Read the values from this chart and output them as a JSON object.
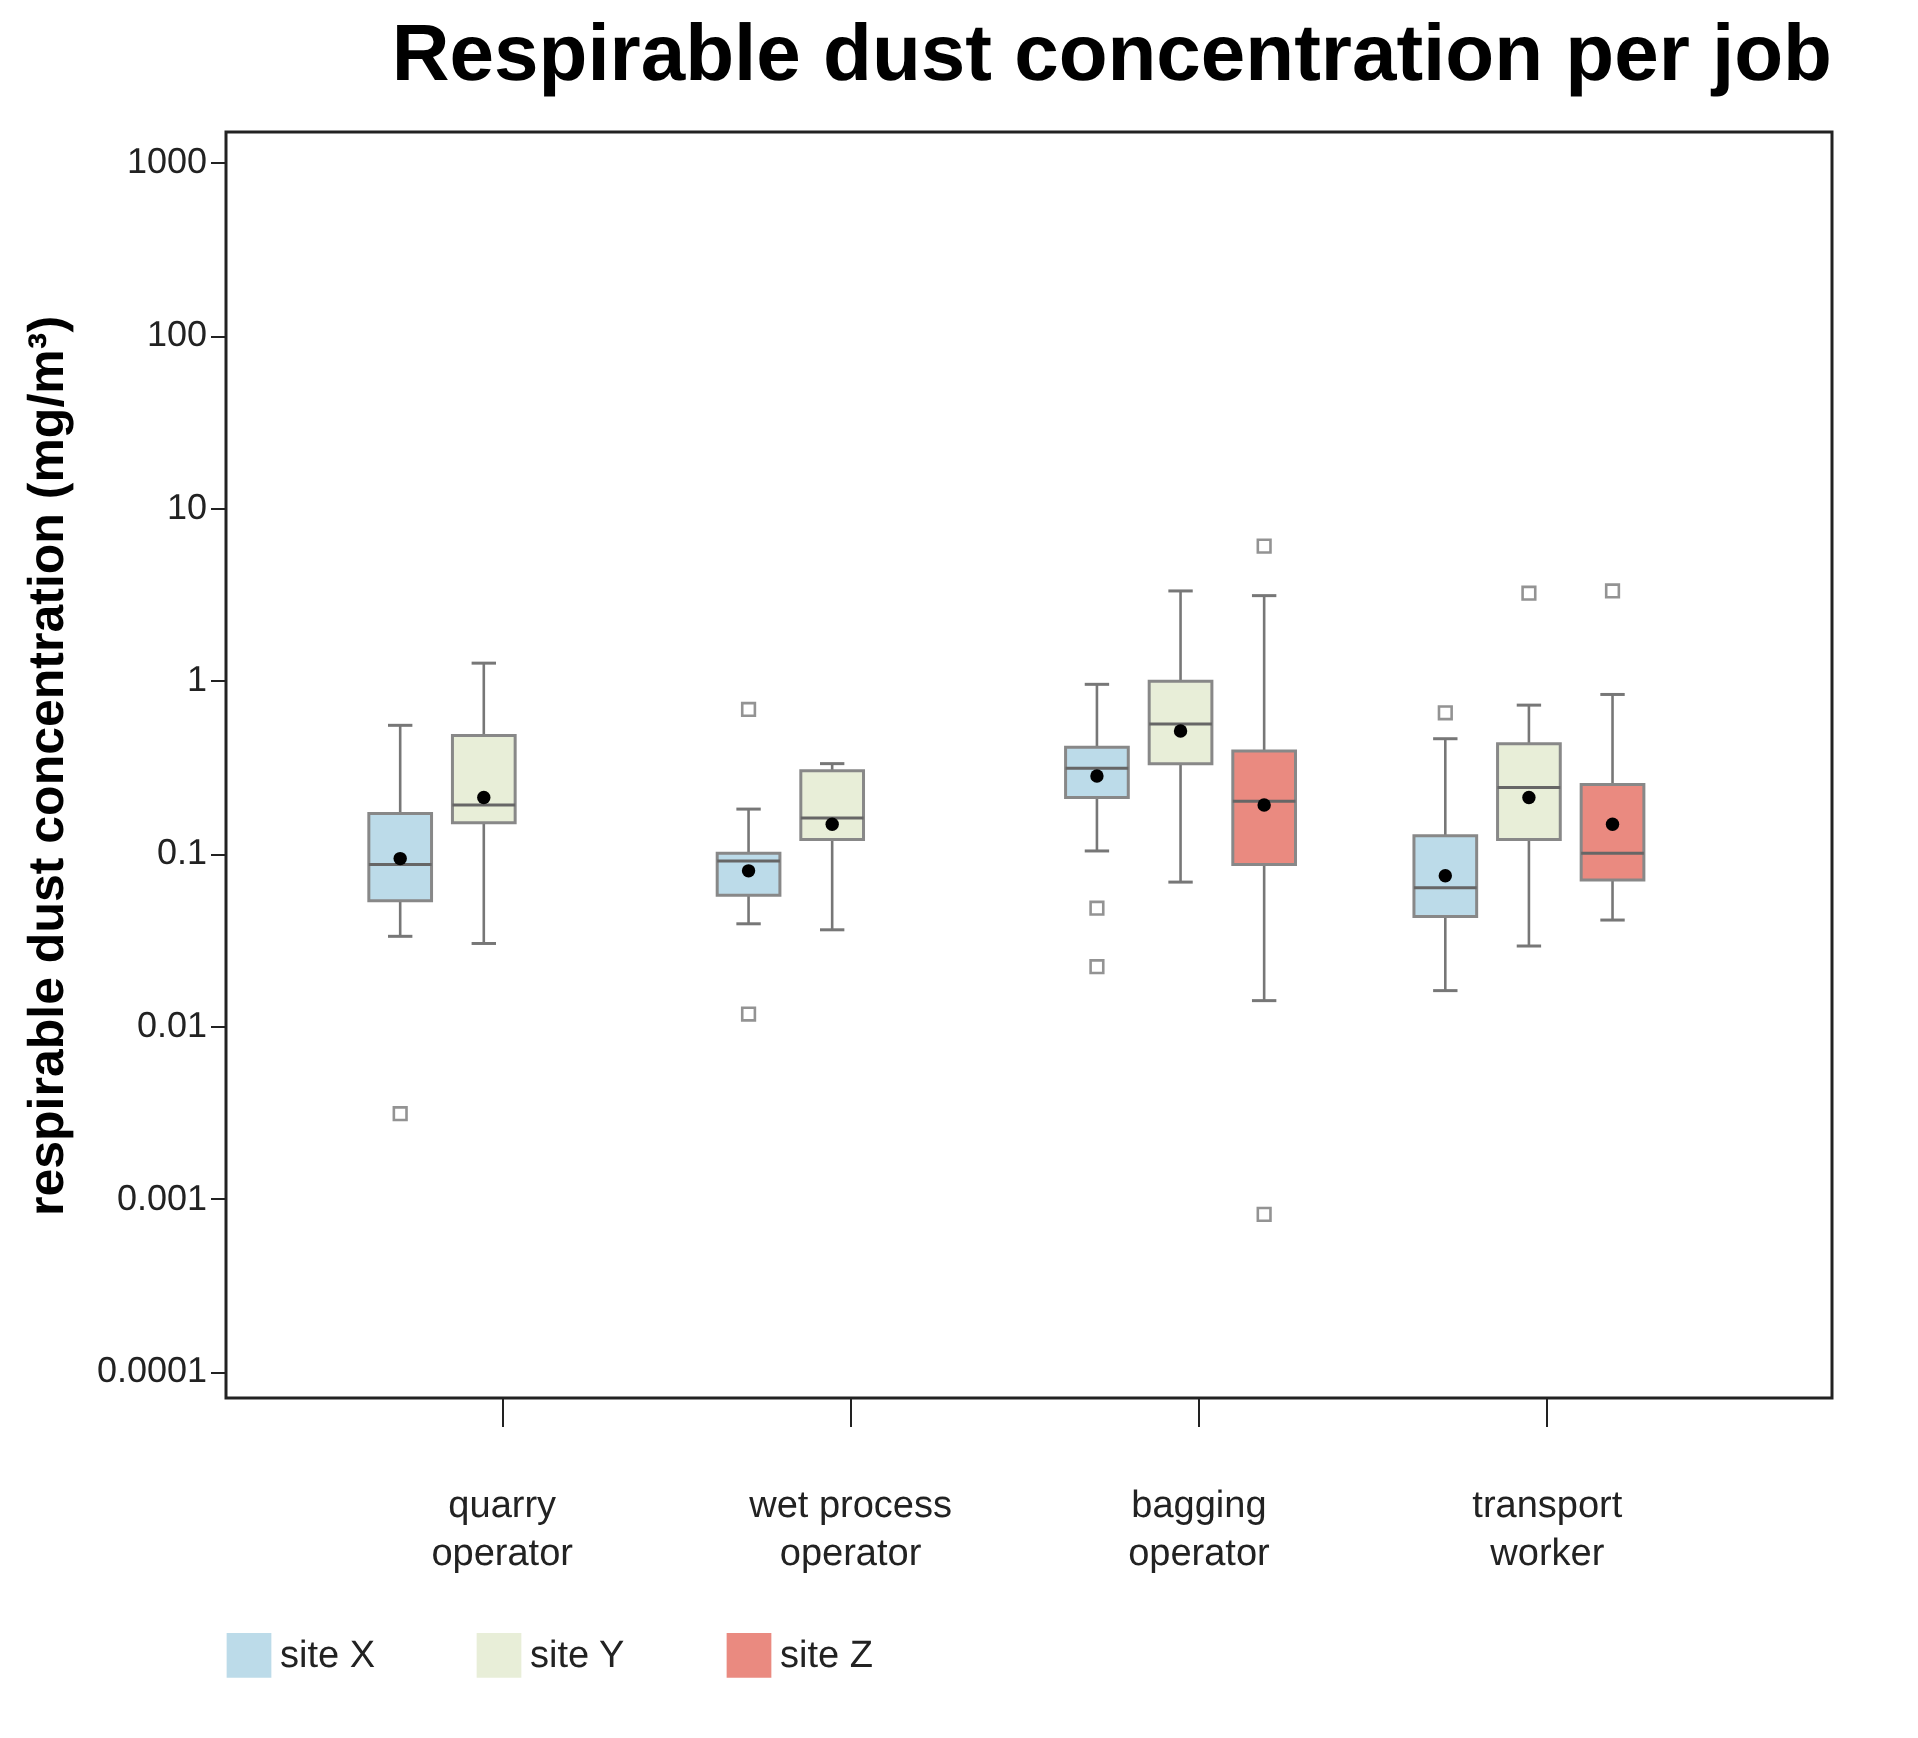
{
  "chart_data": {
    "type": "box",
    "title": "Respirable dust concentration per job",
    "ylabel": "respirable dust concentration (mg/m³)",
    "categories": [
      "quarry operator",
      "wet process operator",
      "bagging operator",
      "transport worker"
    ],
    "log": true,
    "ylim": [
      7e-05,
      1500
    ],
    "yticks": [
      0.0001,
      0.001,
      0.01,
      0.1,
      1,
      10,
      100,
      1000
    ],
    "legend": "bottom",
    "series": [
      {
        "name": "site X",
        "color": "#bcdbe9",
        "boxes": [
          {
            "low": 0.033,
            "q1": 0.053,
            "median": 0.086,
            "q3": 0.17,
            "high": 0.55,
            "mean": 0.093,
            "outliers": [
              0.0031
            ]
          },
          {
            "low": 0.039,
            "q1": 0.057,
            "median": 0.09,
            "q3": 0.1,
            "high": 0.18,
            "mean": 0.079,
            "outliers": [
              0.68,
              0.0117
            ]
          },
          {
            "low": 0.103,
            "q1": 0.21,
            "median": 0.31,
            "q3": 0.41,
            "high": 0.95,
            "mean": 0.28,
            "outliers": [
              0.048,
              0.022
            ]
          },
          {
            "low": 0.016,
            "q1": 0.043,
            "median": 0.063,
            "q3": 0.126,
            "high": 0.46,
            "mean": 0.074,
            "outliers": [
              0.65
            ]
          }
        ]
      },
      {
        "name": "site Y",
        "color": "#e8eed8",
        "boxes": [
          {
            "low": 0.03,
            "q1": 0.15,
            "median": 0.19,
            "q3": 0.48,
            "high": 1.26,
            "mean": 0.21
          },
          {
            "low": 0.036,
            "q1": 0.12,
            "median": 0.16,
            "q3": 0.3,
            "high": 0.33,
            "mean": 0.147
          },
          {
            "low": 0.068,
            "q1": 0.33,
            "median": 0.56,
            "q3": 0.99,
            "high": 3.3,
            "mean": 0.51
          },
          {
            "low": 0.029,
            "q1": 0.12,
            "median": 0.24,
            "q3": 0.43,
            "high": 0.72,
            "mean": 0.21,
            "outliers": [
              3.2
            ]
          }
        ]
      },
      {
        "name": "site Z",
        "color": "#ea8a80",
        "boxes": [
          null,
          null,
          {
            "low": 0.014,
            "q1": 0.086,
            "median": 0.2,
            "q3": 0.39,
            "high": 3.1,
            "mean": 0.19,
            "outliers": [
              6.0,
              0.00081
            ]
          },
          {
            "low": 0.041,
            "q1": 0.07,
            "median": 0.1,
            "q3": 0.25,
            "high": 0.83,
            "mean": 0.147,
            "outliers": [
              3.3
            ]
          }
        ]
      }
    ]
  }
}
